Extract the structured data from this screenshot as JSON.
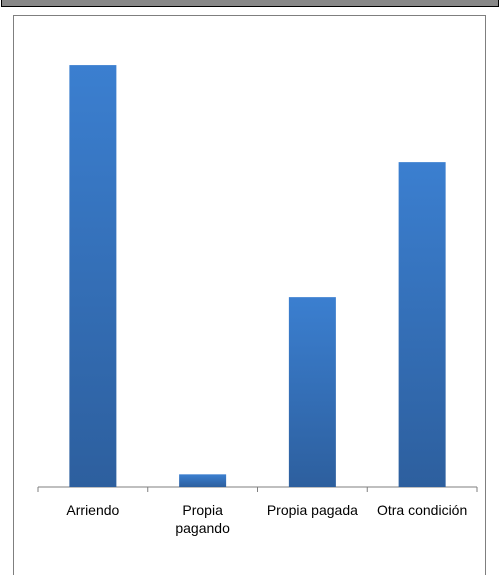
{
  "chart_data": {
    "type": "bar",
    "categories": [
      "Arriendo",
      "Propia\npagando",
      "Propia pagada",
      "Otra condición"
    ],
    "values": [
      100,
      3,
      45,
      77
    ],
    "title": "",
    "xlabel": "",
    "ylabel": "",
    "ylim": [
      0,
      105
    ],
    "grid": false,
    "legend": "none",
    "colors": {
      "bar_top": "#3b7fd0",
      "bar_bottom": "#2d5f9e",
      "axis": "#7f7f7f",
      "frame": "#7f7f7f"
    }
  }
}
